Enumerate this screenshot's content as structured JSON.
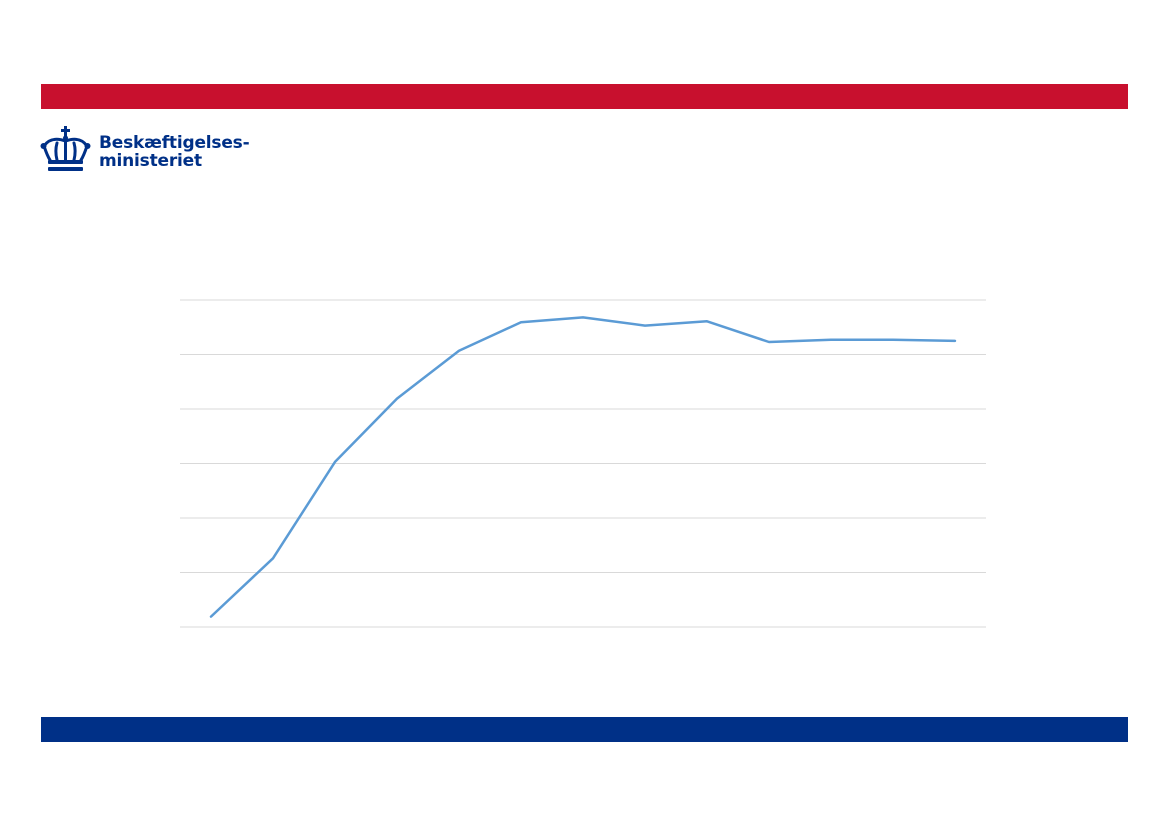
{
  "brand": {
    "name_line1": "Beskæftigelses-",
    "name_line2": "ministeriet",
    "red_color": "#c8102e",
    "blue_color": "#003087",
    "crown_icon": "crown-icon"
  },
  "chart_data": {
    "type": "line",
    "title": "",
    "xlabel": "",
    "ylabel": "",
    "x": [
      1,
      2,
      3,
      4,
      5,
      6,
      7,
      8,
      9,
      10,
      11,
      12,
      13
    ],
    "series": [
      {
        "color": "#5b9bd5",
        "values": [
          0.19,
          1.26,
          3.03,
          4.19,
          5.07,
          5.59,
          5.68,
          5.53,
          5.61,
          5.23,
          5.27,
          5.27,
          5.25
        ]
      }
    ],
    "ylim": [
      0,
      6
    ],
    "gridlines": true,
    "gridline_count": 7,
    "gridline_color": "#d9d9d9",
    "tick_labels_visible": false
  }
}
